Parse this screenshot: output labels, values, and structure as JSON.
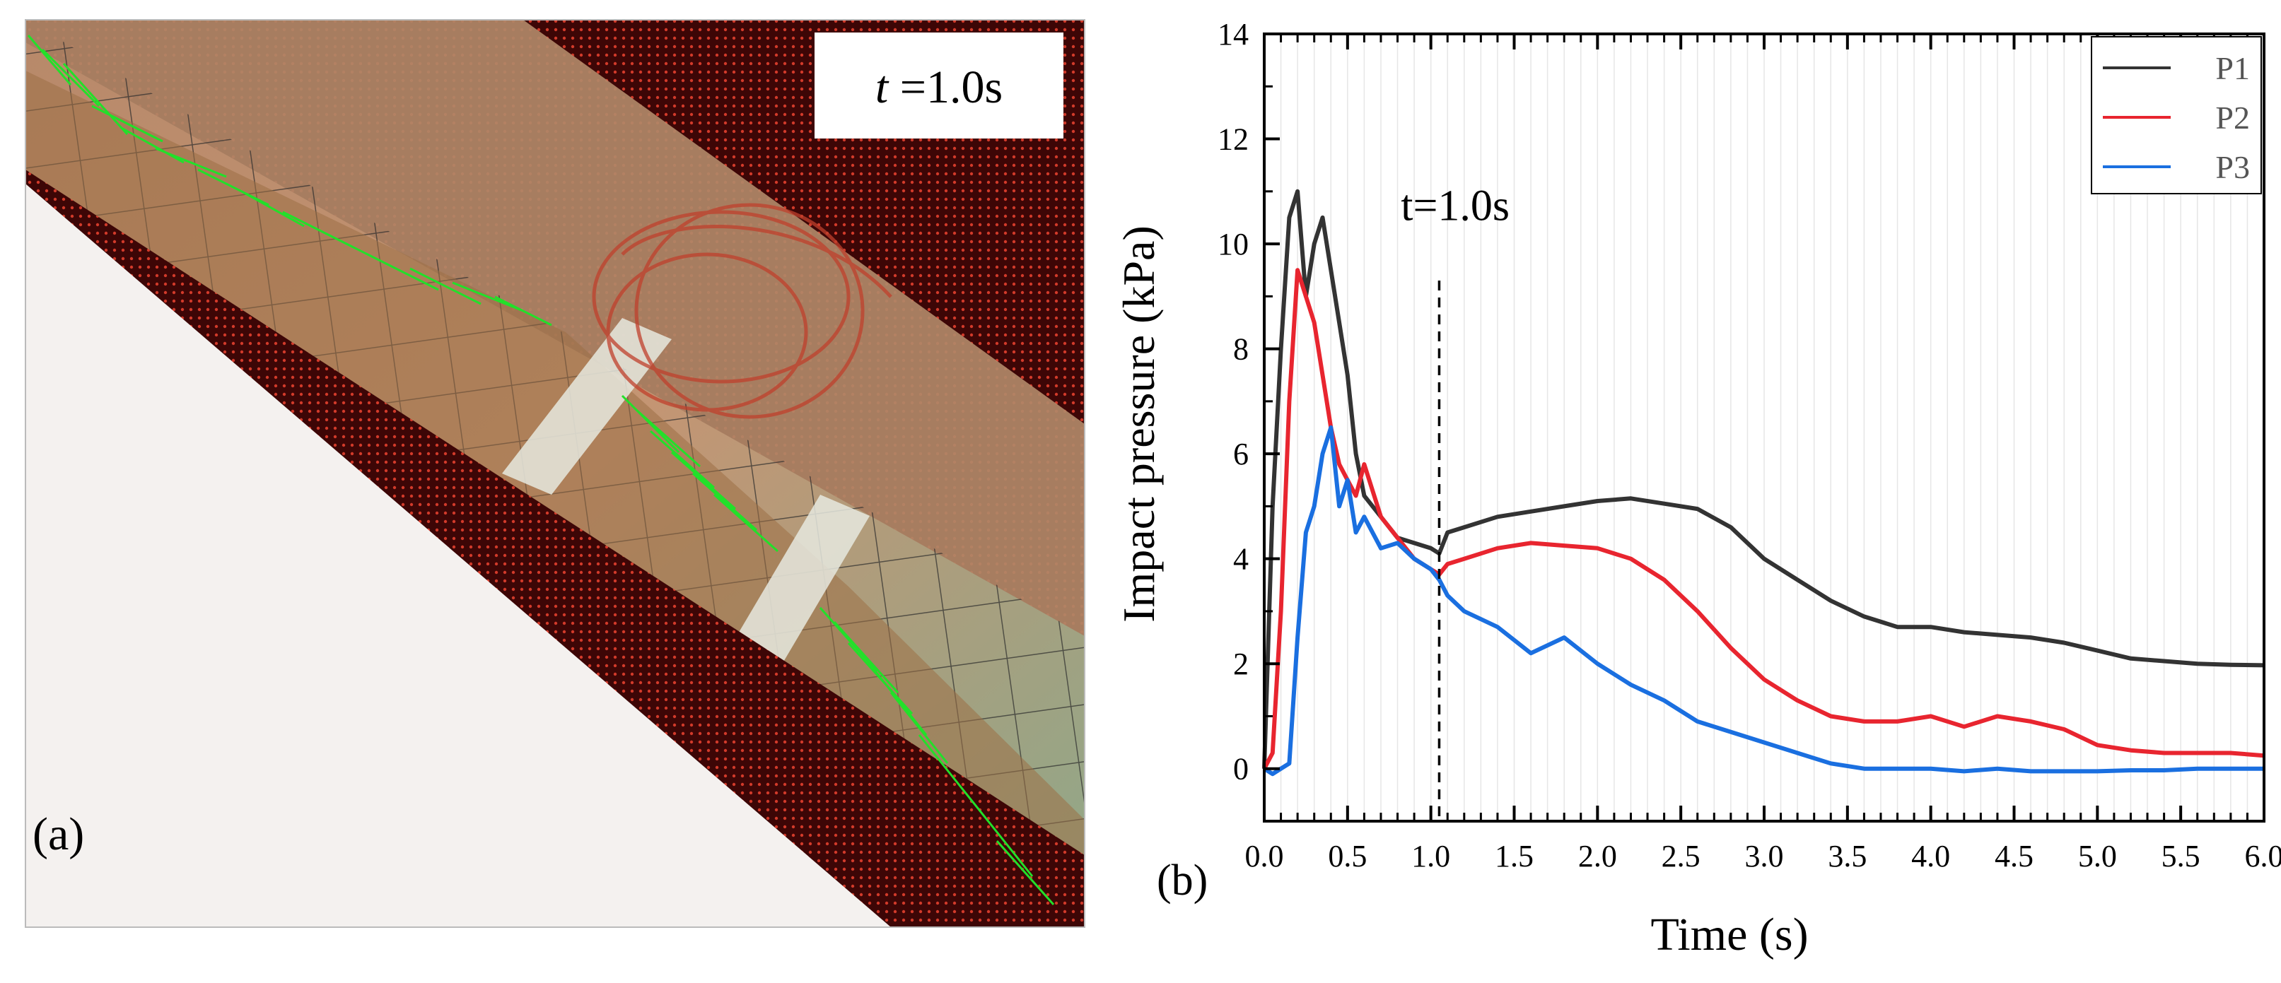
{
  "panel_a": {
    "label": "(a)",
    "time_label_italic": "t",
    "time_label_rest": " =1.0s"
  },
  "panel_b": {
    "label": "(b)"
  },
  "chart_data": {
    "type": "line",
    "title": "",
    "xlabel": "Time (s)",
    "ylabel": "Impact pressure (kPa)",
    "xlim": [
      0,
      6.0
    ],
    "ylim": [
      -1,
      14
    ],
    "x_ticks": [
      "0.0",
      "0.5",
      "1.0",
      "1.5",
      "2.0",
      "2.5",
      "3.0",
      "3.5",
      "4.0",
      "4.5",
      "5.0",
      "5.5",
      "6.0"
    ],
    "y_ticks": [
      "0",
      "2",
      "4",
      "6",
      "8",
      "10",
      "12",
      "14"
    ],
    "legend_position": "top-right",
    "annotation": {
      "text": "t=1.0s",
      "x": 1.05
    },
    "colors": {
      "P1": "#333333",
      "P2": "#e8252f",
      "P3": "#1a6fe0",
      "axis": "#000000"
    },
    "series": [
      {
        "name": "P1",
        "x": [
          0.0,
          0.05,
          0.1,
          0.15,
          0.2,
          0.25,
          0.3,
          0.35,
          0.4,
          0.45,
          0.5,
          0.55,
          0.6,
          0.7,
          0.8,
          0.9,
          1.0,
          1.05,
          1.1,
          1.2,
          1.4,
          1.6,
          1.8,
          2.0,
          2.2,
          2.4,
          2.6,
          2.8,
          3.0,
          3.2,
          3.4,
          3.6,
          3.8,
          4.0,
          4.2,
          4.4,
          4.6,
          4.8,
          5.0,
          5.2,
          5.4,
          5.6,
          5.8,
          6.0
        ],
        "values": [
          0.0,
          5.0,
          8.0,
          10.5,
          11.0,
          9.0,
          10.0,
          10.5,
          9.5,
          8.5,
          7.5,
          6.0,
          5.2,
          4.8,
          4.4,
          4.3,
          4.2,
          4.1,
          4.5,
          4.6,
          4.8,
          4.9,
          5.0,
          5.1,
          5.15,
          5.05,
          4.95,
          4.6,
          4.0,
          3.6,
          3.2,
          2.9,
          2.7,
          2.7,
          2.6,
          2.55,
          2.5,
          2.4,
          2.25,
          2.1,
          2.05,
          2.0,
          1.98,
          1.97
        ]
      },
      {
        "name": "P2",
        "x": [
          0.0,
          0.05,
          0.1,
          0.15,
          0.2,
          0.25,
          0.3,
          0.35,
          0.4,
          0.45,
          0.5,
          0.55,
          0.6,
          0.7,
          0.8,
          0.9,
          1.0,
          1.05,
          1.1,
          1.2,
          1.4,
          1.6,
          1.8,
          2.0,
          2.2,
          2.4,
          2.6,
          2.8,
          3.0,
          3.2,
          3.4,
          3.6,
          3.8,
          4.0,
          4.2,
          4.4,
          4.6,
          4.8,
          5.0,
          5.2,
          5.4,
          5.6,
          5.8,
          6.0
        ],
        "values": [
          0.0,
          0.3,
          3.0,
          7.0,
          9.5,
          9.0,
          8.5,
          7.5,
          6.5,
          5.8,
          5.5,
          5.2,
          5.8,
          4.8,
          4.4,
          4.0,
          3.8,
          3.7,
          3.9,
          4.0,
          4.2,
          4.3,
          4.25,
          4.2,
          4.0,
          3.6,
          3.0,
          2.3,
          1.7,
          1.3,
          1.0,
          0.9,
          0.9,
          1.0,
          0.8,
          1.0,
          0.9,
          0.75,
          0.45,
          0.35,
          0.3,
          0.3,
          0.3,
          0.25
        ]
      },
      {
        "name": "P3",
        "x": [
          0.0,
          0.05,
          0.1,
          0.15,
          0.2,
          0.25,
          0.3,
          0.35,
          0.4,
          0.45,
          0.5,
          0.55,
          0.6,
          0.7,
          0.8,
          0.9,
          1.0,
          1.05,
          1.1,
          1.2,
          1.4,
          1.6,
          1.8,
          2.0,
          2.2,
          2.4,
          2.6,
          2.8,
          3.0,
          3.2,
          3.4,
          3.6,
          3.8,
          4.0,
          4.2,
          4.4,
          4.6,
          4.8,
          5.0,
          5.2,
          5.4,
          5.6,
          5.8,
          6.0
        ],
        "values": [
          0.0,
          -0.1,
          0.0,
          0.1,
          2.5,
          4.5,
          5.0,
          6.0,
          6.5,
          5.0,
          5.5,
          4.5,
          4.8,
          4.2,
          4.3,
          4.0,
          3.8,
          3.6,
          3.3,
          3.0,
          2.7,
          2.2,
          2.5,
          2.0,
          1.6,
          1.3,
          0.9,
          0.7,
          0.5,
          0.3,
          0.1,
          0.0,
          0.0,
          0.0,
          -0.05,
          0.0,
          -0.05,
          -0.05,
          -0.05,
          -0.03,
          -0.03,
          0.0,
          0.0,
          0.0
        ]
      }
    ]
  }
}
